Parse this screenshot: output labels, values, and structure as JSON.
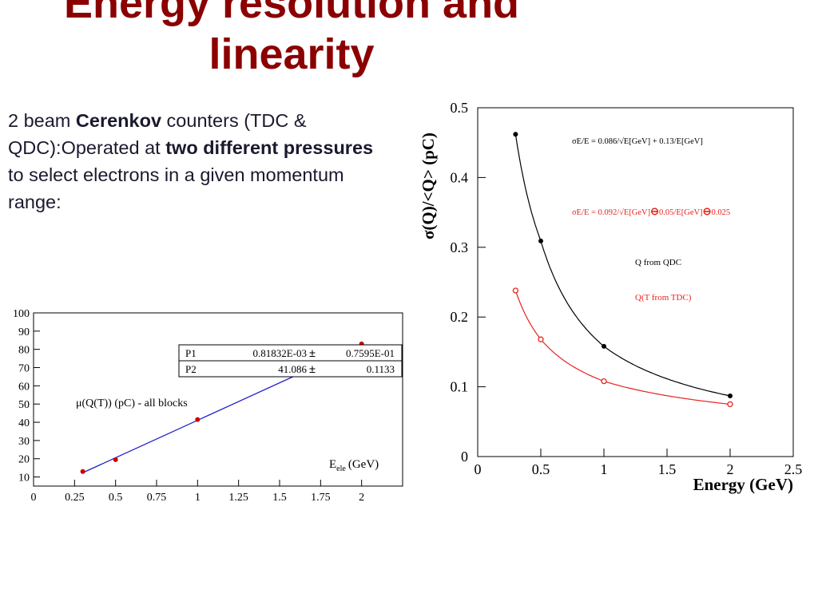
{
  "slide": {
    "title": "Energy resolution and linearity",
    "intro": {
      "t1": "2 beam ",
      "b1": "Cerenkov",
      "t2": " counters (TDC & QDC):Operated at ",
      "b2": "two different pressures",
      "t3": " to select electrons in a given momentum range:"
    }
  },
  "chart_data": [
    {
      "type": "scatter",
      "xlim": [
        0,
        2.25
      ],
      "ylim": [
        5,
        100
      ],
      "xticks": [
        "0",
        "0.25",
        "0.5",
        "0.75",
        "1",
        "1.25",
        "1.5",
        "1.75",
        "2"
      ],
      "yticks": [
        "10",
        "20",
        "30",
        "40",
        "50",
        "60",
        "70",
        "80",
        "90",
        "100"
      ],
      "xlabel": "E",
      "xlabel_sub": "ele",
      "xlabel_unit": "(GeV)",
      "annotation": "μ(Q(T)) (pC) - all blocks",
      "fit_box": [
        {
          "name": "P1",
          "value": "0.81832E-03",
          "pm": "±",
          "error": "0.7595E-01"
        },
        {
          "name": "P2",
          "value": "41.086",
          "pm": "±",
          "error": "0.1133"
        }
      ],
      "fit": {
        "slope": 41.086,
        "intercept": 0.00081832,
        "color": "#2222cc"
      },
      "series": [
        {
          "color": "#cc0000",
          "x": [
            0.3,
            0.5,
            1.0,
            2.0
          ],
          "y": [
            13,
            19.5,
            41.5,
            83
          ]
        }
      ]
    },
    {
      "type": "scatter",
      "xlim": [
        0,
        2.5
      ],
      "ylim": [
        0,
        0.5
      ],
      "xticks": [
        "0",
        "0.5",
        "1",
        "1.5",
        "2",
        "2.5"
      ],
      "yticks": [
        "0",
        "0.1",
        "0.2",
        "0.3",
        "0.4",
        "0.5"
      ],
      "xlabel": "Energy (GeV)",
      "ylabel": "σ(Q)/<Q> (pC)",
      "formula_black": "σE/E = 0.086/√E[GeV] + 0.13/E[GeV]",
      "formula_red": {
        "a": "σE/E = 0.092/√E[GeV]",
        "op1": "⊖",
        "b": "0.05/E[GeV]",
        "op2": "⊖",
        "c": "0.025"
      },
      "legend": [
        {
          "name": "Q from QDC",
          "color": "#000000"
        },
        {
          "name": "Q(T from TDC)",
          "color": "#e8231f"
        }
      ],
      "series": [
        {
          "name": "Q from QDC",
          "color": "#000000",
          "marker": "filled",
          "x": [
            0.3,
            0.5,
            1.0,
            2.0
          ],
          "y": [
            0.462,
            0.309,
            0.158,
            0.087
          ],
          "fit": {
            "a": 0.086,
            "b": 0.13,
            "c": 0
          }
        },
        {
          "name": "Q(T from TDC)",
          "color": "#e8231f",
          "marker": "open",
          "x": [
            0.3,
            0.5,
            1.0,
            2.0
          ],
          "y": [
            0.238,
            0.168,
            0.108,
            0.075
          ],
          "fit": {
            "a": 0.092,
            "b": 0.05,
            "c": 0.025
          }
        }
      ]
    }
  ]
}
